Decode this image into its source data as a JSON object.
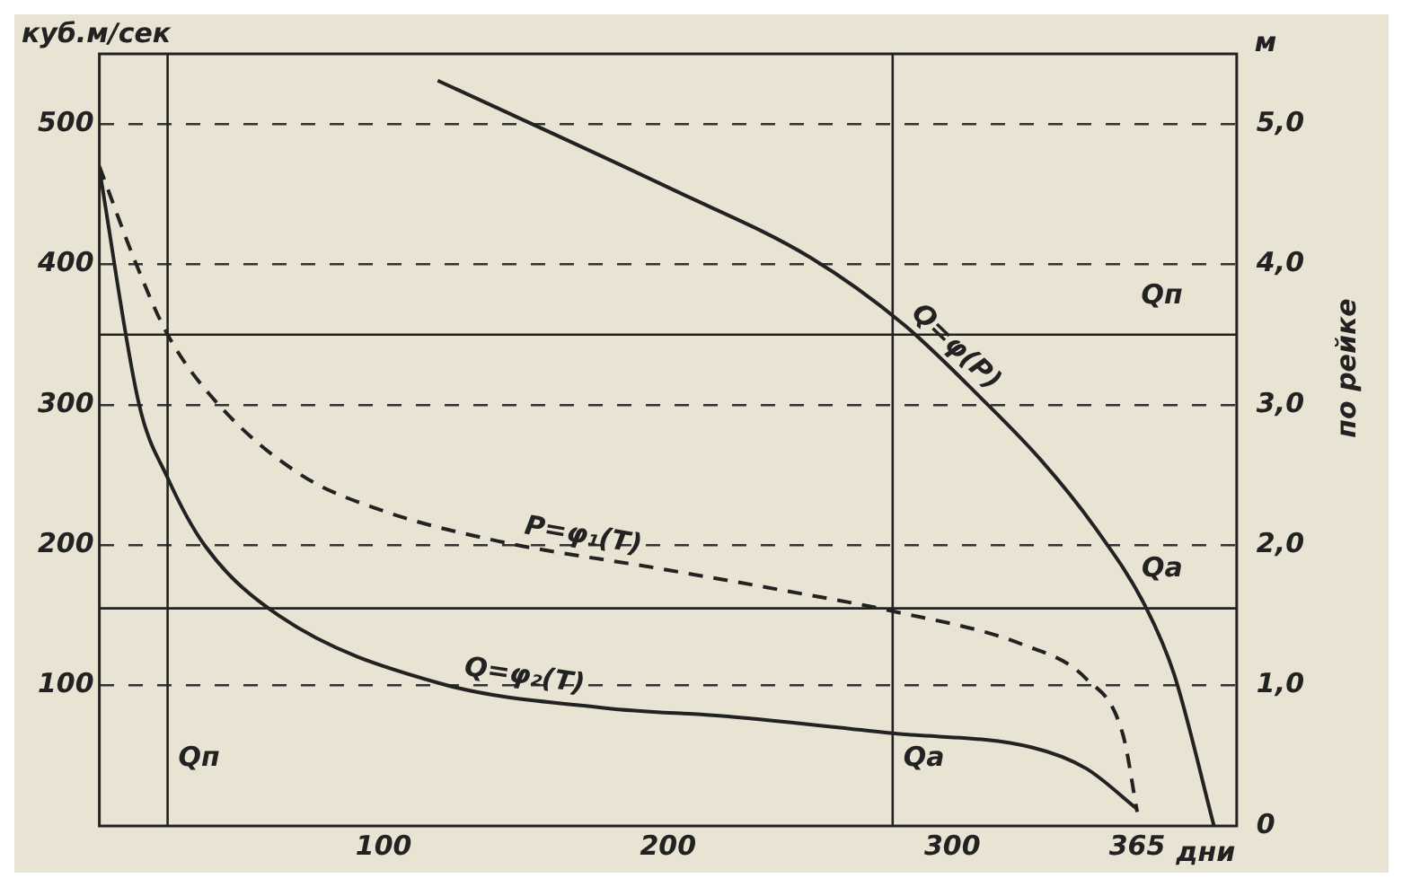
{
  "chart_data": {
    "type": "line",
    "ylabel": "куб.м/сек",
    "xlabel": "дни",
    "y2label": "по рейке",
    "annotations": [
      "м"
    ],
    "xlim": [
      0,
      400
    ],
    "xticks": [
      100,
      200,
      300,
      365
    ],
    "ylim": [
      0,
      550
    ],
    "yticks": [
      100,
      200,
      300,
      400,
      500
    ],
    "y2lim": [
      0,
      5.5
    ],
    "y2ticks": [
      {
        "value": 0,
        "label": "0"
      },
      {
        "value": 1,
        "label": "1,0"
      },
      {
        "value": 2,
        "label": "2,0"
      },
      {
        "value": 3,
        "label": "3,0"
      },
      {
        "value": 4,
        "label": "4,0"
      },
      {
        "value": 5,
        "label": "5,0"
      }
    ],
    "grid": "y",
    "legend": false,
    "marker": "none",
    "ref_lines": [
      {
        "axis": "y",
        "value": 350,
        "label": "Qп"
      },
      {
        "axis": "y",
        "value": 155,
        "label": "Qa"
      },
      {
        "axis": "x",
        "value": 24,
        "label": "Qп"
      },
      {
        "axis": "x",
        "value": 279,
        "label": "Qa"
      }
    ],
    "series": [
      {
        "name": "Q=φ(P)",
        "color": "#222222",
        "line_style": "solid",
        "x": [
          119,
          202,
          250,
          283,
          310,
          331,
          350,
          368,
          378,
          392
        ],
        "values": [
          531,
          453,
          405,
          357,
          305,
          261,
          213,
          156,
          108,
          0
        ]
      },
      {
        "name": "P=φ₁(T)",
        "color": "#222222",
        "line_style": "dashed",
        "axis": "y2",
        "x": [
          0,
          13,
          24,
          42,
          71,
          99,
          140,
          198,
          240,
          279,
          325,
          347,
          360,
          365
        ],
        "values": [
          4.7,
          4.0,
          3.5,
          3.0,
          2.5,
          2.25,
          2.03,
          1.83,
          1.68,
          1.53,
          1.29,
          1.05,
          0.65,
          0.1
        ]
      },
      {
        "name": "Q=φ₂(T)",
        "color": "#222222",
        "line_style": "solid",
        "x": [
          0,
          14,
          24,
          37,
          63,
          119,
          178,
          221,
          279,
          328,
          347,
          365
        ],
        "values": [
          468,
          300,
          248,
          200,
          150,
          102,
          84,
          78,
          66,
          56,
          41,
          12
        ]
      }
    ]
  }
}
